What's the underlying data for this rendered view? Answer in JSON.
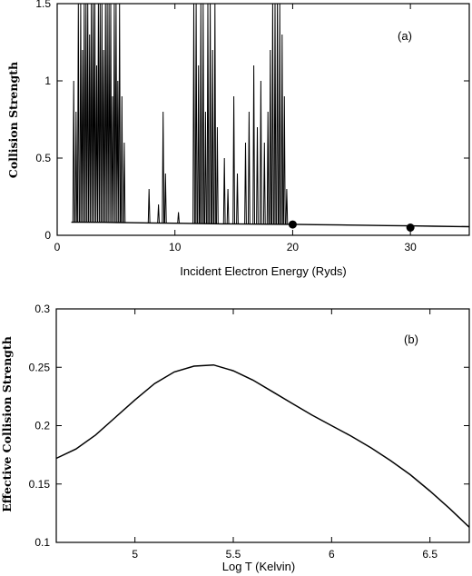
{
  "chart_data": [
    {
      "type": "line",
      "panel_label": "(a)",
      "xlabel": "Incident Electron Energy (Ryds)",
      "ylabel": "Collision Strength",
      "xlim": [
        0,
        35
      ],
      "ylim": [
        0,
        1.5
      ],
      "xticks": [
        0,
        10,
        20,
        30
      ],
      "yticks": [
        0,
        0.5,
        1,
        1.5
      ],
      "ytick_labels": [
        "0",
        "0.5",
        "1",
        "1.5"
      ],
      "background": {
        "x": [
          1.2,
          2,
          4,
          6,
          8,
          10,
          12,
          14,
          16,
          18,
          19.5,
          20,
          22,
          24,
          26,
          28,
          30,
          32,
          35
        ],
        "y": [
          0.085,
          0.085,
          0.084,
          0.082,
          0.08,
          0.078,
          0.076,
          0.074,
          0.073,
          0.072,
          0.071,
          0.071,
          0.069,
          0.067,
          0.065,
          0.063,
          0.061,
          0.059,
          0.056
        ]
      },
      "resonances": {
        "x": [
          1.4,
          1.6,
          1.8,
          2.0,
          2.15,
          2.3,
          2.45,
          2.6,
          2.75,
          2.9,
          3.05,
          3.2,
          3.35,
          3.5,
          3.65,
          3.8,
          3.95,
          4.1,
          4.25,
          4.4,
          4.55,
          4.7,
          4.85,
          5.0,
          5.15,
          5.3,
          5.5,
          5.7,
          7.8,
          8.6,
          9.0,
          9.2,
          10.3,
          11.6,
          11.8,
          12.0,
          12.2,
          12.4,
          12.6,
          12.8,
          13.0,
          13.2,
          13.4,
          13.6,
          14.2,
          14.5,
          15.0,
          15.3,
          16.0,
          16.3,
          16.7,
          17.0,
          17.3,
          17.6,
          17.9,
          18.1,
          18.3,
          18.5,
          18.7,
          18.9,
          19.1,
          19.3,
          19.5
        ],
        "y": [
          1.0,
          0.8,
          1.5,
          1.5,
          1.2,
          1.5,
          1.5,
          1.5,
          1.3,
          1.5,
          1.5,
          1.5,
          1.1,
          1.5,
          1.5,
          1.5,
          1.2,
          1.5,
          1.5,
          1.5,
          1.5,
          0.9,
          1.5,
          1.5,
          1.0,
          1.5,
          0.9,
          0.6,
          0.3,
          0.2,
          0.8,
          0.4,
          0.15,
          1.5,
          1.5,
          1.1,
          1.5,
          1.5,
          0.8,
          1.5,
          1.5,
          1.2,
          1.5,
          0.7,
          0.5,
          0.3,
          0.9,
          0.4,
          0.6,
          0.8,
          1.1,
          0.7,
          1.0,
          0.6,
          0.8,
          1.2,
          1.5,
          1.5,
          1.5,
          1.5,
          1.3,
          0.9,
          0.3
        ]
      },
      "points": {
        "x": [
          20,
          30
        ],
        "y": [
          0.07,
          0.05
        ]
      }
    },
    {
      "type": "line",
      "panel_label": "(b)",
      "xlabel": "Log T (Kelvin)",
      "ylabel": "Effective Collision Strength",
      "xlim": [
        4.6,
        6.7
      ],
      "ylim": [
        0.1,
        0.3
      ],
      "xticks": [
        5,
        5.5,
        6,
        6.5
      ],
      "yticks": [
        0.1,
        0.15,
        0.2,
        0.25,
        0.3
      ],
      "ytick_labels": [
        "0.1",
        "0.15",
        "0.2",
        "0.25",
        "0.3"
      ],
      "x": [
        4.6,
        4.7,
        4.8,
        4.9,
        5.0,
        5.1,
        5.2,
        5.3,
        5.4,
        5.5,
        5.6,
        5.7,
        5.8,
        5.9,
        6.0,
        6.1,
        6.2,
        6.3,
        6.4,
        6.5,
        6.6,
        6.7
      ],
      "y": [
        0.172,
        0.18,
        0.192,
        0.207,
        0.222,
        0.236,
        0.246,
        0.251,
        0.252,
        0.247,
        0.239,
        0.229,
        0.219,
        0.209,
        0.2,
        0.191,
        0.181,
        0.17,
        0.158,
        0.144,
        0.129,
        0.113
      ]
    }
  ]
}
